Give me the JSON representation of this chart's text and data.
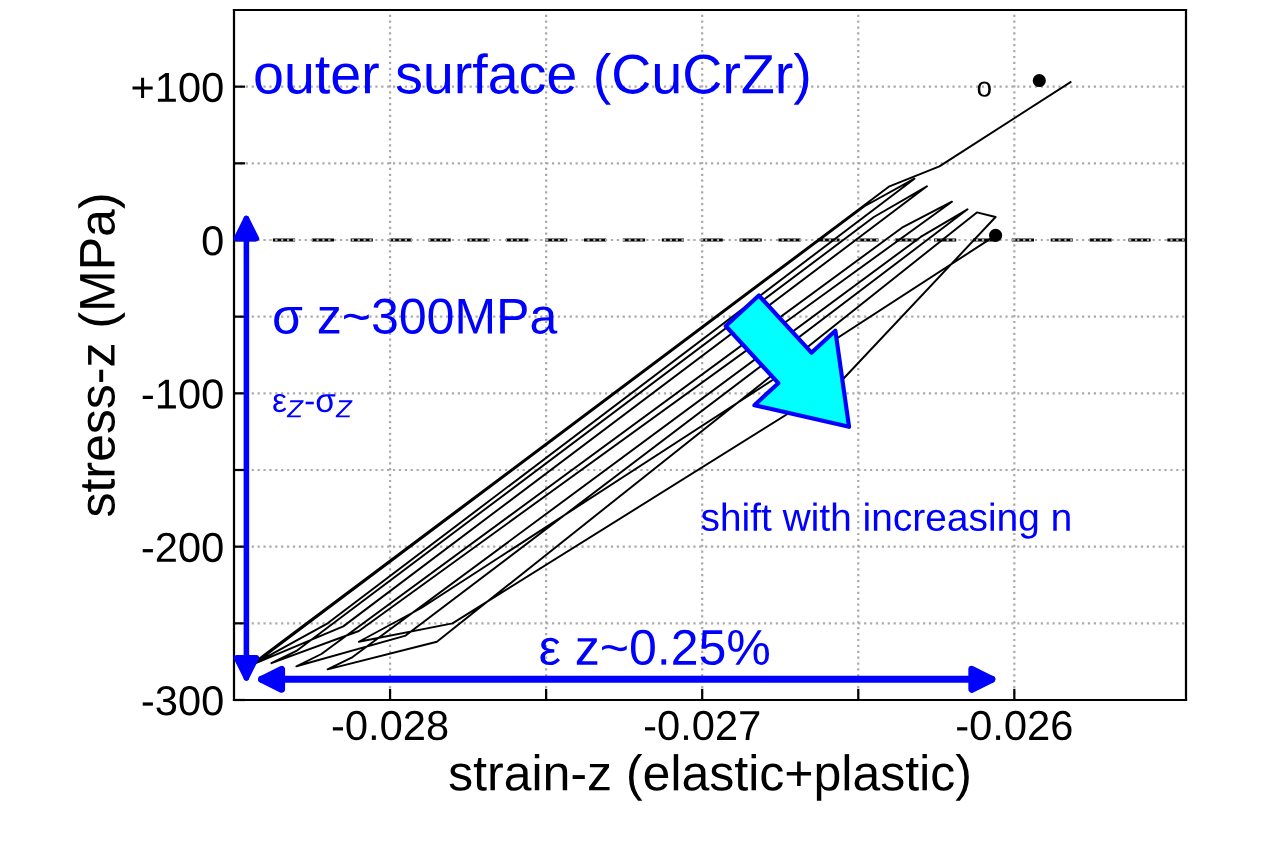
{
  "chart_data": {
    "type": "line",
    "xlabel": "strain-z (elastic+plastic)",
    "ylabel": "stress-z (MPa)",
    "xlim": [
      -0.0285,
      -0.02545
    ],
    "ylim": [
      -300,
      150
    ],
    "xticks": [
      -0.028,
      {
        "value": -0.0275,
        "label": null
      },
      -0.027,
      {
        "value": -0.0265,
        "label": null
      },
      -0.026
    ],
    "yticks": [
      {
        "value": -300,
        "label": "-300"
      },
      {
        "value": -250,
        "label": null
      },
      {
        "value": -200,
        "label": "-200"
      },
      {
        "value": -150,
        "label": null
      },
      {
        "value": -100,
        "label": "-100"
      },
      {
        "value": -50,
        "label": null
      },
      {
        "value": 0,
        "label": "0"
      },
      {
        "value": 50,
        "label": null
      },
      {
        "value": 100,
        "label": "+100"
      }
    ],
    "grid": true,
    "line_style": "solid",
    "marker": "none",
    "ref_lines": [
      {
        "axis": "y",
        "value": 0,
        "color": "#000000",
        "line_style": "dashed"
      }
    ],
    "series": [
      {
        "color": "#000000",
        "x": [
          -0.02582,
          -0.02624,
          -0.0264,
          -0.0284,
          -0.02845,
          -0.0282,
          -0.02632,
          -0.02648,
          -0.02838,
          -0.02843,
          -0.02815,
          -0.02628,
          -0.02645,
          -0.0283,
          -0.02838,
          -0.0281,
          -0.0262,
          -0.02636,
          -0.02822,
          -0.0283,
          -0.02795,
          -0.02615,
          -0.0263,
          -0.02812,
          -0.0282,
          -0.02785,
          -0.02612,
          -0.02606,
          -0.02655,
          -0.0278,
          -0.0281,
          -0.0279,
          -0.02606
        ],
        "values": [
          103,
          48,
          35,
          -270,
          -278,
          -250,
          40,
          22,
          -268,
          -276,
          -252,
          35,
          15,
          -268,
          -276,
          -255,
          25,
          8,
          -270,
          -278,
          -258,
          20,
          2,
          -272,
          -280,
          -262,
          18,
          15,
          -91,
          -250,
          -262,
          -240,
          3
        ]
      },
      {
        "type": "scatter",
        "color": "#000000",
        "marker": "circle",
        "x": [
          -0.02592,
          -0.02606
        ],
        "values": [
          104,
          3
        ]
      }
    ],
    "annotations": [
      "o",
      "outer surface (CuCrZr)",
      "σ z~300MPa",
      "ε$_{Z}$-σ$_{Z}$",
      "shift with increasing n",
      "ε z~0.25%"
    ]
  }
}
